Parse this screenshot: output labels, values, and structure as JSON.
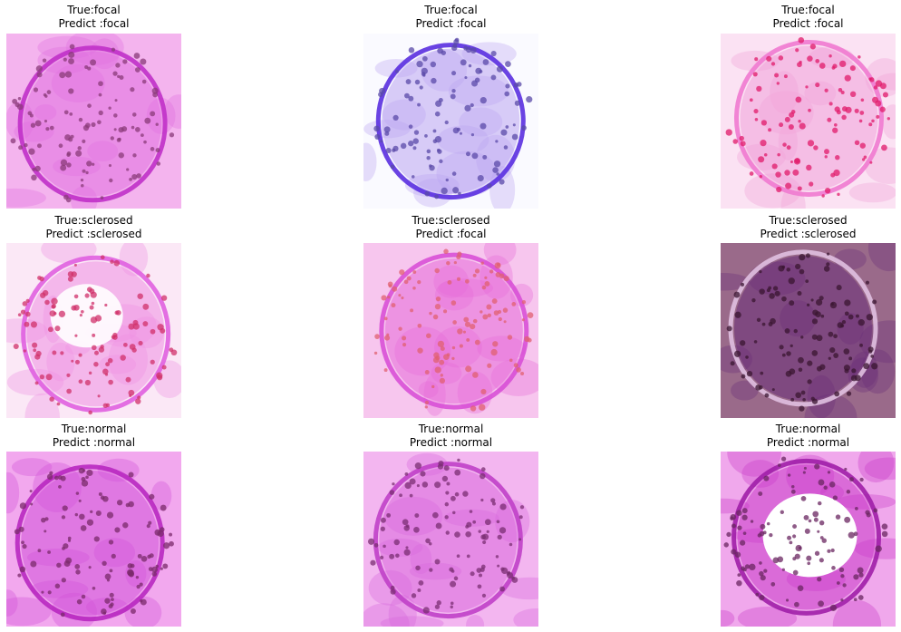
{
  "grid": [
    {
      "true_label": "True:focal",
      "predict_label": "Predict :focal",
      "stain": "pink-magenta",
      "colors": {
        "bg": "#f4b4ee",
        "tissue": "#e070e0",
        "nuclei": "#8a3a78",
        "ring": "#c030c8"
      }
    },
    {
      "true_label": "True:focal",
      "predict_label": "Predict :focal",
      "stain": "violet-blue",
      "colors": {
        "bg": "#fafaff",
        "tissue": "#b9a4f0",
        "nuclei": "#5a4aa8",
        "ring": "#5a2fe0"
      }
    },
    {
      "true_label": "True:focal",
      "predict_label": "Predict :focal",
      "stain": "pink-red",
      "colors": {
        "bg": "#fbe2f3",
        "tissue": "#f0a0d8",
        "nuclei": "#e01a6a",
        "ring": "#f07ad0"
      }
    },
    {
      "true_label": "True:sclerosed",
      "predict_label": "Predict :sclerosed",
      "stain": "pink-magenta-light",
      "colors": {
        "bg": "#fbe8f6",
        "tissue": "#ef8ee2",
        "nuclei": "#d0306a",
        "ring": "#e060e0"
      }
    },
    {
      "true_label": "True:sclerosed",
      "predict_label": "Predict :focal",
      "stain": "pink-magenta",
      "colors": {
        "bg": "#f7c6ee",
        "tissue": "#e66ad8",
        "nuclei": "#e06070",
        "ring": "#d850d6"
      }
    },
    {
      "true_label": "True:sclerosed",
      "predict_label": "Predict :sclerosed",
      "stain": "dark-purple",
      "colors": {
        "bg": "#9a6a8a",
        "tissue": "#6a2e78",
        "nuclei": "#3a1630",
        "ring": "#e0c0e0"
      }
    },
    {
      "true_label": "True:normal",
      "predict_label": "Predict :normal",
      "stain": "magenta",
      "colors": {
        "bg": "#f2a8ee",
        "tissue": "#d050d8",
        "nuclei": "#7a2a6a",
        "ring": "#b828c0"
      }
    },
    {
      "true_label": "True:normal",
      "predict_label": "Predict :normal",
      "stain": "magenta",
      "colors": {
        "bg": "#f3b6f0",
        "tissue": "#d868dc",
        "nuclei": "#7a2e72",
        "ring": "#c040c8"
      }
    },
    {
      "true_label": "True:normal",
      "predict_label": "Predict :normal",
      "stain": "magenta-hollow",
      "colors": {
        "bg": "#f0a8ec",
        "tissue": "#c838c8",
        "nuclei": "#6a2660",
        "ring": "#a01ea8"
      }
    }
  ]
}
